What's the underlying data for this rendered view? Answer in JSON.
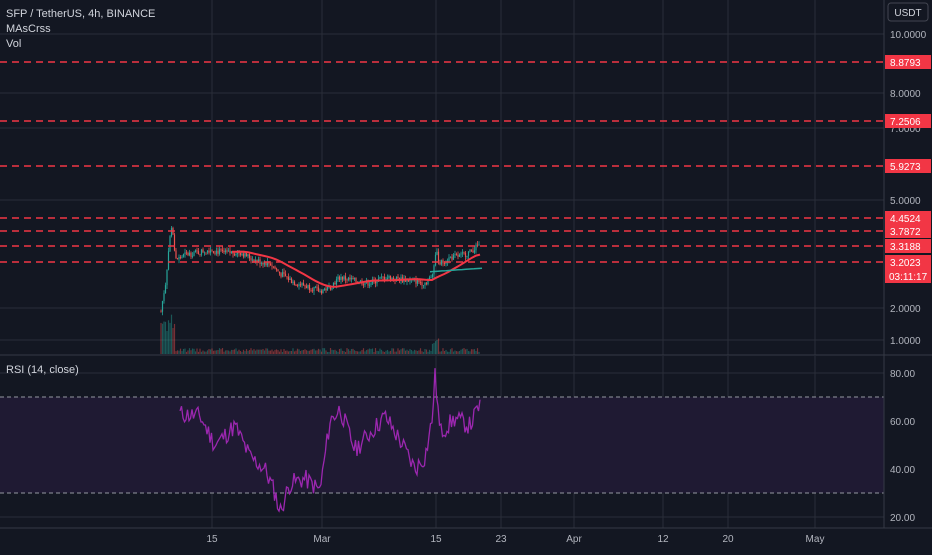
{
  "header": {
    "symbol_line": "SFP / TetherUS, 4h, BINANCE",
    "indicators": [
      "MAsCrss",
      "Vol"
    ]
  },
  "currency_button": "USDT",
  "rsi_label": "RSI (14, close)",
  "colors": {
    "background": "#131722",
    "grid": "#2a2e39",
    "level_line": "#f23645",
    "up": "#26a69a",
    "down": "#ef5350",
    "ma_fast": "#26a69a",
    "ma_slow": "#f23645",
    "rsi_line": "#9c27b0",
    "rsi_band": "#2a1e40",
    "current_price_tag": "#f23645"
  },
  "price_axis": {
    "ticks": [
      "10.0000",
      "8.0000",
      "7.0000",
      "5.0000",
      "2.0000",
      "1.0000"
    ],
    "levels": [
      "8.8793",
      "7.2506",
      "5.9273",
      "4.4524",
      "3.7872",
      "3.3188",
      "3.2023"
    ],
    "current_price": "3.2023",
    "countdown": "03:11:17"
  },
  "rsi_axis": {
    "ticks": [
      "80.00",
      "60.00",
      "40.00",
      "20.00"
    ]
  },
  "time_axis": {
    "labels": [
      "15",
      "Mar",
      "15",
      "23",
      "Apr",
      "12",
      "20",
      "May"
    ]
  },
  "chart_data": {
    "type": "candlestick",
    "price_levels": [
      8.8793,
      7.2506,
      5.9273,
      4.4524,
      3.7872,
      3.3188,
      3.2023
    ],
    "rsi_band": [
      30,
      70
    ],
    "rsi_range": [
      18,
      82
    ]
  }
}
